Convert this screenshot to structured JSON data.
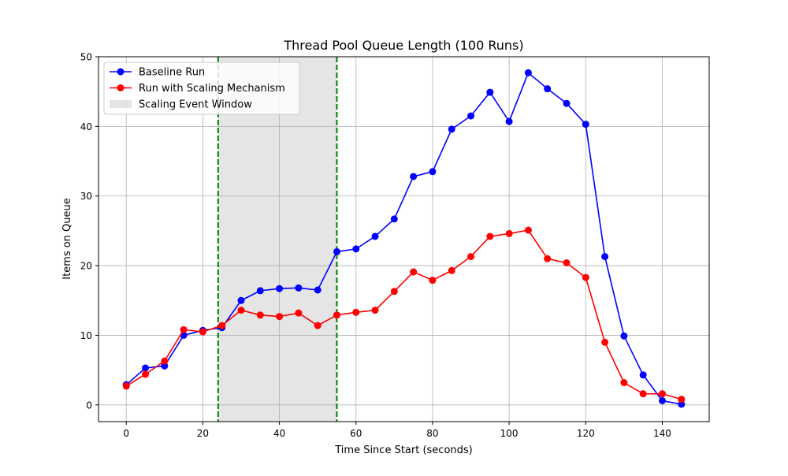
{
  "chart_data": {
    "type": "line",
    "title": "Thread Pool Queue Length (100 Runs)",
    "xlabel": "Time Since Start (seconds)",
    "ylabel": "Items on Queue",
    "xlim": [
      -7.25,
      152.25
    ],
    "ylim": [
      -2.4,
      50
    ],
    "xticks": [
      0,
      20,
      40,
      60,
      80,
      100,
      120,
      140
    ],
    "yticks": [
      0,
      10,
      20,
      30,
      40,
      50
    ],
    "grid": true,
    "legend_position": "top-left",
    "x": [
      0,
      5,
      10,
      15,
      20,
      25,
      30,
      35,
      40,
      45,
      50,
      55,
      60,
      65,
      70,
      75,
      80,
      85,
      90,
      95,
      100,
      105,
      110,
      115,
      120,
      125,
      130,
      135,
      140,
      145
    ],
    "series": [
      {
        "name": "Baseline Run",
        "color": "#0000ff",
        "marker": "circle",
        "values": [
          2.9,
          5.3,
          5.6,
          10.0,
          10.7,
          11.1,
          15.0,
          16.4,
          16.7,
          16.8,
          16.5,
          22.0,
          22.4,
          24.2,
          26.7,
          32.8,
          33.5,
          39.6,
          41.5,
          44.9,
          40.7,
          47.7,
          45.4,
          43.3,
          40.3,
          21.3,
          9.9,
          4.3,
          0.6,
          0.1
        ]
      },
      {
        "name": "Run with Scaling Mechanism",
        "color": "#ff0000",
        "marker": "circle",
        "values": [
          2.7,
          4.4,
          6.3,
          10.8,
          10.5,
          11.4,
          13.6,
          12.9,
          12.7,
          13.2,
          11.4,
          12.9,
          13.3,
          13.6,
          16.3,
          19.1,
          17.9,
          19.3,
          21.3,
          24.2,
          24.6,
          25.1,
          21.0,
          20.4,
          18.3,
          9.0,
          3.2,
          1.6,
          1.6,
          0.8
        ]
      }
    ],
    "scaling_window": {
      "name": "Scaling Event Window",
      "start": 24,
      "end": 55,
      "fill_color": "#d3d3d3",
      "boundary_color": "#008000"
    }
  }
}
